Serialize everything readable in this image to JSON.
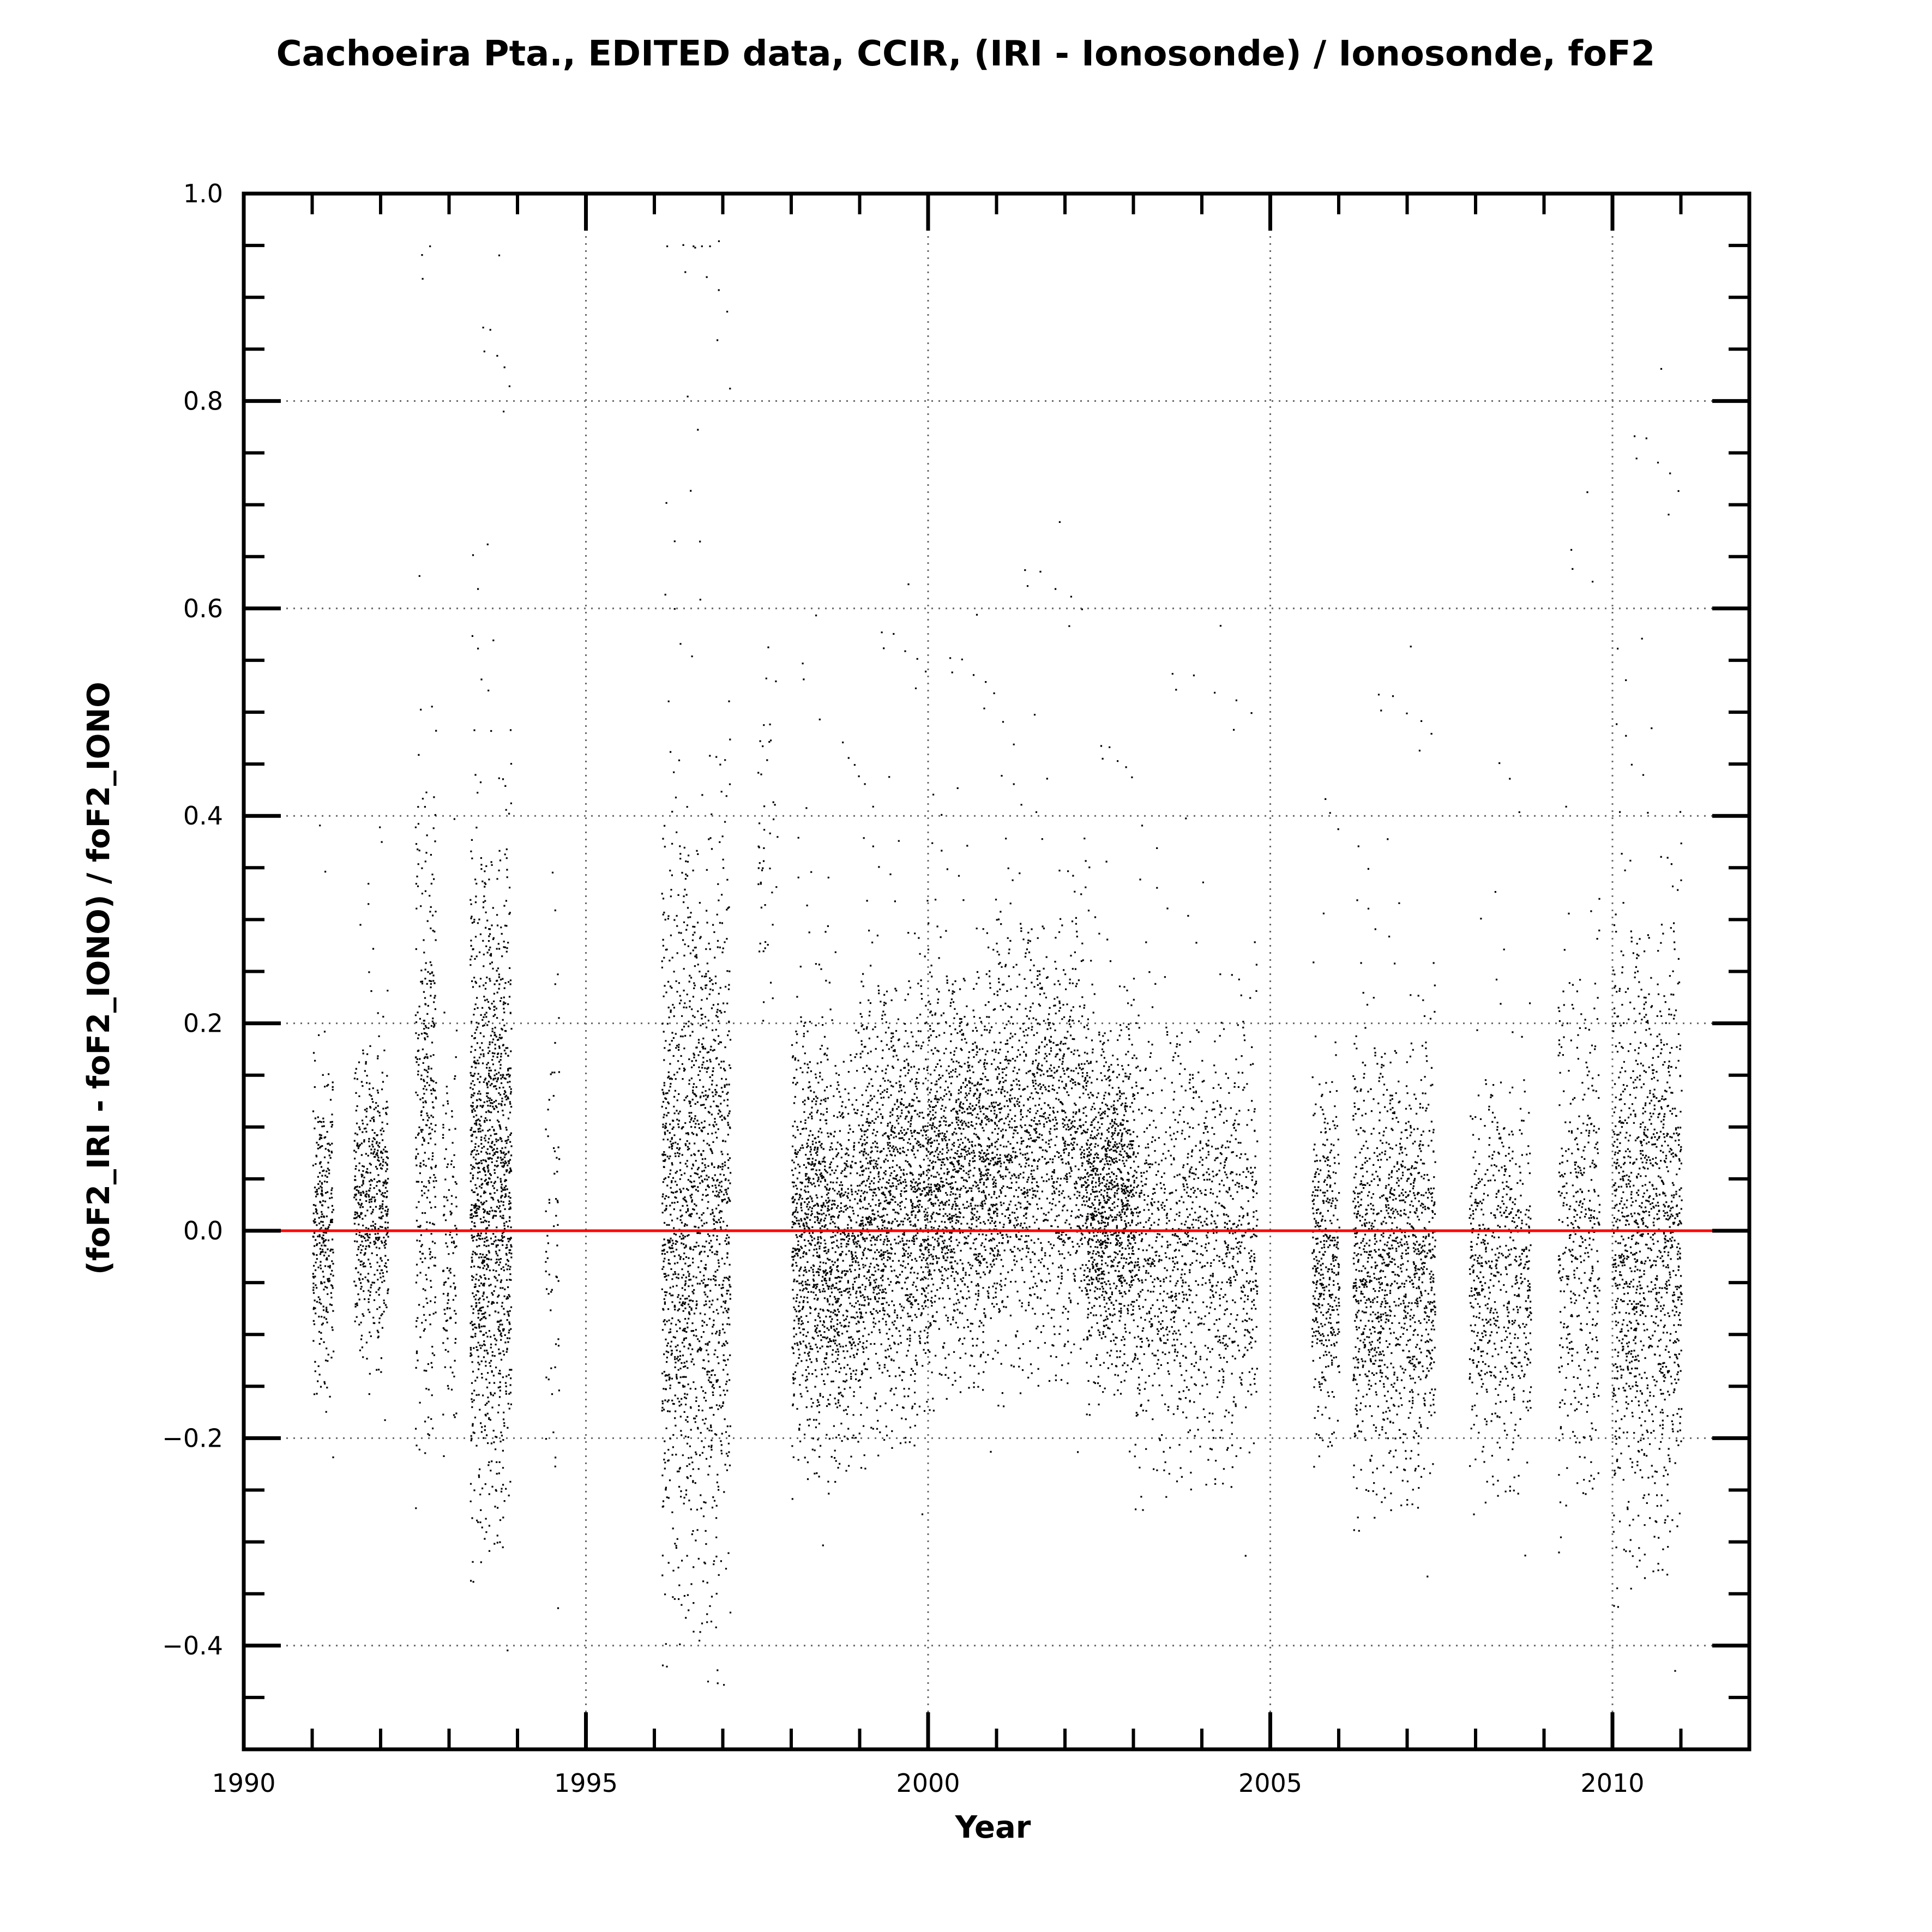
{
  "chart_data": {
    "type": "scatter",
    "title": "Cachoeira Pta., EDITED data, CCIR, (IRI - Ionosonde) / Ionosonde, foF2",
    "xlabel": "Year",
    "ylabel": "(foF2_IRI - foF2_IONO) / foF2_IONO",
    "xlim": [
      1990,
      2012
    ],
    "ylim": [
      -0.5,
      1.0
    ],
    "x_ticks": [
      1990,
      1995,
      2000,
      2005,
      2010
    ],
    "x_tick_labels": [
      "1990",
      "1995",
      "2000",
      "2005",
      "2010"
    ],
    "y_ticks": [
      -0.4,
      -0.2,
      0.0,
      0.2,
      0.4,
      0.6,
      0.8,
      1.0
    ],
    "y_tick_labels": [
      "−0.4",
      "−0.2",
      "0.0",
      "0.2",
      "0.4",
      "0.6",
      "0.8",
      "1.0"
    ],
    "grid": true,
    "reference_line": {
      "y": 0.0,
      "x_range": [
        1990.5,
        2011.5
      ],
      "color": "#ff0000"
    },
    "point_color": "#000000",
    "series": [
      {
        "clusters": [
          {
            "x": [
              1991.0,
              1991.3
            ],
            "center": 0.0,
            "spread": 0.07,
            "density": 1.0
          },
          {
            "x": [
              1991.6,
              1992.1
            ],
            "center": 0.03,
            "spread": 0.07,
            "density": 1.0
          },
          {
            "x": [
              1992.5,
              1992.8
            ],
            "center": 0.12,
            "spread": 0.15,
            "density": 1.1
          },
          {
            "x": [
              1992.9,
              1993.1
            ],
            "center": -0.02,
            "spread": 0.08,
            "density": 0.6
          },
          {
            "x": [
              1993.3,
              1993.9
            ],
            "center": 0.05,
            "spread": 0.15,
            "density": 3.0
          },
          {
            "x": [
              1994.4,
              1994.6
            ],
            "center": 0.0,
            "spread": 0.12,
            "density": 0.3
          },
          {
            "x": [
              1996.1,
              1997.1
            ],
            "center": 0.02,
            "spread": 0.17,
            "density": 3.5
          },
          {
            "x": [
              1997.5,
              1997.8
            ],
            "center": 0.4,
            "spread": 0.08,
            "density": 0.15
          },
          {
            "x": [
              1998.0,
              1998.5
            ],
            "center": 0.0,
            "spread": 0.1,
            "density": 1.4
          },
          {
            "x": [
              1998.5,
              1999.0
            ],
            "center": -0.02,
            "spread": 0.09,
            "density": 1.2
          },
          {
            "x": [
              1999.0,
              2000.0
            ],
            "center": 0.03,
            "spread": 0.1,
            "density": 2.0
          },
          {
            "x": [
              2000.0,
              2001.0
            ],
            "center": 0.06,
            "spread": 0.09,
            "density": 3.0
          },
          {
            "x": [
              2001.0,
              2002.3
            ],
            "center": 0.09,
            "spread": 0.1,
            "density": 3.2
          },
          {
            "x": [
              2002.3,
              2003.0
            ],
            "center": 0.03,
            "spread": 0.08,
            "density": 1.5
          },
          {
            "x": [
              2003.0,
              2004.8
            ],
            "center": -0.01,
            "spread": 0.1,
            "density": 1.8
          },
          {
            "x": [
              2005.6,
              2006.0
            ],
            "center": -0.02,
            "spread": 0.08,
            "density": 1.0
          },
          {
            "x": [
              2006.2,
              2007.4
            ],
            "center": -0.03,
            "spread": 0.1,
            "density": 1.8
          },
          {
            "x": [
              2007.9,
              2008.8
            ],
            "center": -0.04,
            "spread": 0.09,
            "density": 0.7
          },
          {
            "x": [
              2009.2,
              2009.8
            ],
            "center": 0.0,
            "spread": 0.12,
            "density": 0.7
          },
          {
            "x": [
              2010.0,
              2011.0
            ],
            "center": 0.0,
            "spread": 0.14,
            "density": 3.5
          }
        ]
      }
    ]
  }
}
